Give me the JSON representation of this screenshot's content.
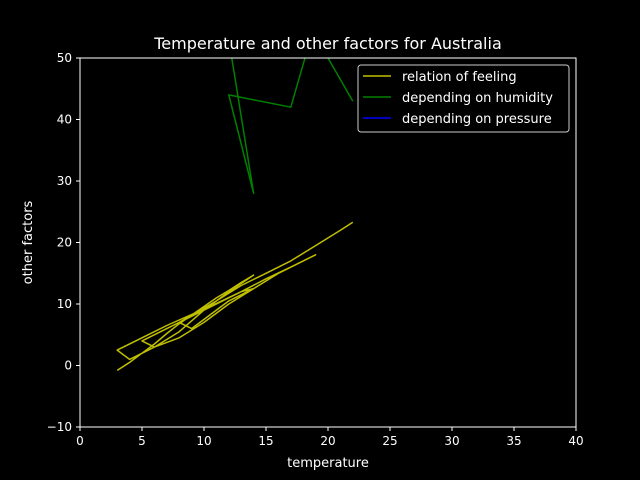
{
  "chart_data": {
    "type": "line",
    "title": "Temperature and other factors for Australia",
    "xlabel": "temperature",
    "ylabel": "other factors",
    "xlim": [
      0,
      40
    ],
    "ylim": [
      -10,
      50
    ],
    "xticks": [
      0,
      5,
      10,
      15,
      20,
      25,
      30,
      35,
      40
    ],
    "yticks": [
      -10,
      0,
      10,
      20,
      30,
      40,
      50
    ],
    "grid": false,
    "legend_position": "top-right",
    "background": "#000000",
    "series": [
      {
        "name": "relation of feeling",
        "color": "#bfbf00",
        "x": [
          3,
          4,
          5,
          6,
          7,
          8,
          9,
          10,
          11,
          12,
          13,
          14,
          12,
          10,
          8,
          6,
          4,
          3,
          5,
          7,
          9,
          11,
          13,
          15,
          17,
          19,
          16,
          14,
          12,
          10,
          8,
          6,
          5,
          7,
          9,
          11,
          13,
          14,
          12,
          10,
          9,
          8,
          11,
          13,
          15,
          17,
          19,
          21,
          22
        ],
        "y": [
          -0.8,
          0.5,
          2.0,
          3.5,
          5.2,
          6.8,
          8.2,
          9.6,
          11.0,
          12.2,
          13.5,
          14.7,
          12.0,
          9.0,
          5.5,
          3.0,
          1.0,
          2.5,
          4.5,
          6.5,
          8.3,
          10.1,
          12.0,
          14.1,
          16.0,
          18.0,
          15.0,
          12.5,
          10.0,
          7.0,
          4.5,
          3.0,
          4.0,
          6.0,
          8.0,
          10.0,
          12.0,
          12.5,
          10.5,
          7.5,
          6.0,
          7.0,
          10.5,
          13.0,
          15.0,
          17.0,
          19.5,
          22.0,
          23.3
        ]
      },
      {
        "name": "depending on humidity",
        "color": "#008000",
        "x": [
          10,
          12,
          14,
          12,
          17,
          18,
          19,
          17,
          20,
          22
        ],
        "y": [
          55,
          53,
          28,
          44,
          42,
          49,
          56,
          58,
          50,
          43
        ]
      },
      {
        "name": "depending on pressure",
        "color": "#0000ff",
        "x": [],
        "y": []
      }
    ]
  }
}
